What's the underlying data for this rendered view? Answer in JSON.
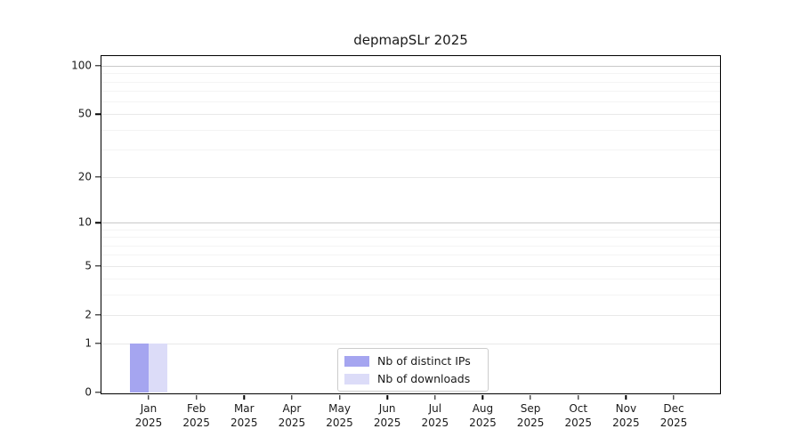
{
  "chart_data": {
    "type": "bar",
    "title": "depmapSLr 2025",
    "x_categories": [
      {
        "month": "Jan",
        "year": "2025"
      },
      {
        "month": "Feb",
        "year": "2025"
      },
      {
        "month": "Mar",
        "year": "2025"
      },
      {
        "month": "Apr",
        "year": "2025"
      },
      {
        "month": "May",
        "year": "2025"
      },
      {
        "month": "Jun",
        "year": "2025"
      },
      {
        "month": "Jul",
        "year": "2025"
      },
      {
        "month": "Aug",
        "year": "2025"
      },
      {
        "month": "Sep",
        "year": "2025"
      },
      {
        "month": "Oct",
        "year": "2025"
      },
      {
        "month": "Nov",
        "year": "2025"
      },
      {
        "month": "Dec",
        "year": "2025"
      }
    ],
    "series": [
      {
        "name": "Nb of distinct IPs",
        "color": "#a5a5f0",
        "values": [
          1,
          0,
          0,
          0,
          0,
          0,
          0,
          0,
          0,
          0,
          0,
          0
        ]
      },
      {
        "name": "Nb of downloads",
        "color": "#dcdcf8",
        "values": [
          1,
          0,
          0,
          0,
          0,
          0,
          0,
          0,
          0,
          0,
          0,
          0
        ]
      }
    ],
    "y_axis": {
      "scale": "log1p",
      "tick_values": [
        0,
        1,
        2,
        5,
        10,
        20,
        50,
        100
      ],
      "minor_gridline_values": [
        3,
        4,
        6,
        7,
        8,
        9,
        30,
        40,
        60,
        70,
        80,
        90
      ],
      "emphasized_gridline_values": [
        10,
        100
      ],
      "ylim": [
        0,
        115
      ]
    },
    "legend": {
      "position": "lower center"
    },
    "colors": {
      "axis": "#000000",
      "text": "#1a1a1a",
      "grid_major": "#e9e9e9",
      "grid_minor": "#f4f4f4",
      "grid_emphasis": "#c9c9c9",
      "legend_border": "#cccccc"
    },
    "grid": true
  }
}
